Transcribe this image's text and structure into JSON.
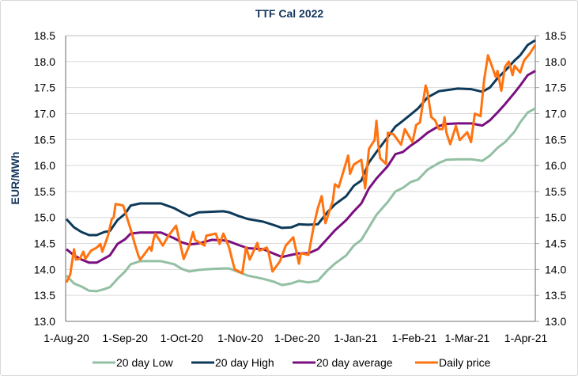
{
  "chart_data": {
    "type": "line",
    "title": "TTF Cal 2022",
    "ylabel": "EUR/MWh",
    "xlabel": "",
    "ylim": [
      13.0,
      18.5
    ],
    "xlim": [
      "2020-08-01",
      "2021-04-06"
    ],
    "y_ticks": [
      "13.0",
      "13.5",
      "14.0",
      "14.5",
      "15.0",
      "15.5",
      "16.0",
      "16.5",
      "17.0",
      "17.5",
      "18.0",
      "18.5"
    ],
    "secondary_y_ticks": [
      "13.0",
      "13.5",
      "14.0",
      "14.5",
      "15.0",
      "15.5",
      "16.0",
      "16.5",
      "17.0",
      "17.5",
      "18.0",
      "18.5"
    ],
    "x_ticks": [
      {
        "date": "2020-08-01",
        "label": "1-Aug-20"
      },
      {
        "date": "2020-09-01",
        "label": "1-Sep-20"
      },
      {
        "date": "2020-10-01",
        "label": "1-Oct-20"
      },
      {
        "date": "2020-11-01",
        "label": "1-Nov-20"
      },
      {
        "date": "2020-12-01",
        "label": "1-Dec-20"
      },
      {
        "date": "2021-01-01",
        "label": "1-Jan-21"
      },
      {
        "date": "2021-02-01",
        "label": "1-Feb-21"
      },
      {
        "date": "2021-03-01",
        "label": "1-Mar-21"
      },
      {
        "date": "2021-04-01",
        "label": "1-Apr-21"
      }
    ],
    "grid": "horizontal",
    "legend": "bottom",
    "x": [
      "2020-08-01",
      "2020-08-05",
      "2020-08-09",
      "2020-08-13",
      "2020-08-17",
      "2020-08-21",
      "2020-08-24",
      "2020-08-28",
      "2020-09-01",
      "2020-09-04",
      "2020-09-09",
      "2020-09-14",
      "2020-09-20",
      "2020-09-27",
      "2020-10-01",
      "2020-10-05",
      "2020-10-10",
      "2020-10-17",
      "2020-10-23",
      "2020-10-26",
      "2020-10-31",
      "2020-11-05",
      "2020-11-13",
      "2020-11-19",
      "2020-11-23",
      "2020-11-28",
      "2020-12-02",
      "2020-12-07",
      "2020-12-12",
      "2020-12-17",
      "2020-12-21",
      "2020-12-27",
      "2020-12-31",
      "2021-01-04",
      "2021-01-08",
      "2021-01-12",
      "2021-01-18",
      "2021-01-22",
      "2021-01-26",
      "2021-01-30",
      "2021-02-03",
      "2021-02-08",
      "2021-02-14",
      "2021-02-18",
      "2021-02-24",
      "2021-03-03",
      "2021-03-09",
      "2021-03-13",
      "2021-03-17",
      "2021-03-21",
      "2021-03-26",
      "2021-03-29",
      "2021-04-02",
      "2021-04-06"
    ],
    "series": [
      {
        "name": "20 day Low",
        "color": "#93bfa3",
        "values": [
          13.88,
          13.73,
          13.67,
          13.59,
          13.58,
          13.62,
          13.66,
          13.82,
          13.96,
          14.1,
          14.16,
          14.16,
          14.16,
          14.1,
          14.01,
          13.96,
          13.99,
          14.01,
          14.02,
          14.02,
          13.95,
          13.88,
          13.82,
          13.76,
          13.7,
          13.73,
          13.78,
          13.75,
          13.78,
          13.98,
          14.11,
          14.27,
          14.46,
          14.57,
          14.81,
          15.05,
          15.3,
          15.5,
          15.57,
          15.68,
          15.73,
          15.92,
          16.05,
          16.11,
          16.12,
          16.12,
          16.09,
          16.19,
          16.34,
          16.45,
          16.65,
          16.83,
          17.02,
          17.1
        ]
      },
      {
        "name": "20 day High",
        "color": "#0e3a5a",
        "values": [
          14.97,
          14.81,
          14.72,
          14.66,
          14.66,
          14.72,
          14.74,
          14.95,
          15.07,
          15.23,
          15.27,
          15.27,
          15.27,
          15.18,
          15.1,
          15.03,
          15.1,
          15.11,
          15.12,
          15.1,
          15.03,
          14.97,
          14.92,
          14.85,
          14.8,
          14.81,
          14.87,
          14.86,
          14.87,
          15.1,
          15.25,
          15.41,
          15.61,
          15.71,
          16.06,
          16.26,
          16.55,
          16.75,
          16.86,
          16.98,
          17.1,
          17.31,
          17.43,
          17.45,
          17.48,
          17.47,
          17.42,
          17.5,
          17.68,
          17.82,
          18.02,
          18.12,
          18.32,
          18.41
        ]
      },
      {
        "name": "20 day average",
        "color": "#7a0f80",
        "values": [
          14.39,
          14.27,
          14.19,
          14.13,
          14.13,
          14.21,
          14.27,
          14.49,
          14.58,
          14.69,
          14.71,
          14.71,
          14.71,
          14.6,
          14.52,
          14.48,
          14.5,
          14.57,
          14.56,
          14.54,
          14.47,
          14.41,
          14.39,
          14.3,
          14.24,
          14.28,
          14.31,
          14.31,
          14.39,
          14.59,
          14.75,
          14.95,
          15.12,
          15.27,
          15.56,
          15.75,
          15.99,
          16.22,
          16.26,
          16.38,
          16.48,
          16.63,
          16.76,
          16.8,
          16.81,
          16.81,
          16.77,
          16.87,
          17.02,
          17.18,
          17.4,
          17.54,
          17.74,
          17.82
        ]
      },
      {
        "name": "Daily price",
        "color": "#ff7310",
        "x": [
          "2020-08-01",
          "2020-08-03",
          "2020-08-05",
          "2020-08-06",
          "2020-08-08",
          "2020-08-10",
          "2020-08-11",
          "2020-08-14",
          "2020-08-17",
          "2020-08-19",
          "2020-08-20",
          "2020-08-23",
          "2020-08-25",
          "2020-08-26",
          "2020-08-27",
          "2020-08-31",
          "2020-09-01",
          "2020-09-04",
          "2020-09-06",
          "2020-09-08",
          "2020-09-09",
          "2020-09-11",
          "2020-09-14",
          "2020-09-15",
          "2020-09-16",
          "2020-09-17",
          "2020-09-21",
          "2020-09-24",
          "2020-09-28",
          "2020-10-02",
          "2020-10-05",
          "2020-10-07",
          "2020-10-08",
          "2020-10-13",
          "2020-10-14",
          "2020-10-19",
          "2020-10-21",
          "2020-10-23",
          "2020-10-26",
          "2020-10-29",
          "2020-11-02",
          "2020-11-04",
          "2020-11-06",
          "2020-11-10",
          "2020-11-11",
          "2020-11-15",
          "2020-11-16",
          "2020-11-18",
          "2020-11-22",
          "2020-11-25",
          "2020-11-29",
          "2020-12-02",
          "2020-12-03",
          "2020-12-07",
          "2020-12-10",
          "2020-12-12",
          "2020-12-14",
          "2020-12-16",
          "2020-12-20",
          "2020-12-21",
          "2020-12-23",
          "2020-12-28",
          "2020-12-29",
          "2020-12-31",
          "2021-01-04",
          "2021-01-06",
          "2021-01-08",
          "2021-01-11",
          "2021-01-12",
          "2021-01-13",
          "2021-01-14",
          "2021-01-17",
          "2021-01-18",
          "2021-01-21",
          "2021-01-25",
          "2021-01-27",
          "2021-01-31",
          "2021-02-02",
          "2021-02-04",
          "2021-02-07",
          "2021-02-08",
          "2021-02-10",
          "2021-02-12",
          "2021-02-14",
          "2021-02-16",
          "2021-02-17",
          "2021-02-18",
          "2021-02-20",
          "2021-02-23",
          "2021-02-25",
          "2021-03-01",
          "2021-03-03",
          "2021-03-05",
          "2021-03-08",
          "2021-03-10",
          "2021-03-12",
          "2021-03-14",
          "2021-03-16",
          "2021-03-17",
          "2021-03-19",
          "2021-03-21",
          "2021-03-23",
          "2021-03-25",
          "2021-03-26",
          "2021-03-29",
          "2021-03-31",
          "2021-04-03",
          "2021-04-06"
        ],
        "values": [
          13.75,
          13.9,
          14.39,
          14.19,
          14.2,
          14.34,
          14.2,
          14.36,
          14.42,
          14.49,
          14.34,
          14.65,
          14.97,
          15.0,
          15.26,
          15.23,
          15.12,
          14.77,
          14.51,
          14.27,
          14.19,
          14.28,
          14.43,
          14.36,
          14.57,
          14.69,
          14.46,
          14.65,
          14.84,
          14.2,
          14.46,
          14.72,
          14.57,
          14.46,
          14.65,
          14.69,
          14.49,
          14.69,
          14.43,
          14.0,
          13.93,
          14.43,
          14.19,
          14.51,
          14.36,
          14.42,
          14.31,
          13.96,
          14.16,
          14.46,
          14.62,
          14.11,
          14.31,
          14.28,
          14.87,
          15.18,
          15.41,
          14.89,
          15.33,
          15.64,
          15.58,
          16.19,
          15.84,
          16.02,
          16.11,
          15.56,
          16.32,
          16.49,
          16.86,
          16.4,
          16.14,
          16.03,
          16.63,
          16.6,
          16.4,
          16.7,
          16.45,
          16.78,
          16.83,
          17.54,
          17.41,
          16.93,
          16.87,
          16.7,
          16.7,
          16.93,
          16.63,
          16.41,
          16.76,
          16.49,
          16.64,
          16.45,
          17.0,
          16.95,
          17.66,
          18.12,
          17.92,
          17.71,
          17.82,
          17.44,
          17.9,
          18.0,
          17.74,
          17.92,
          17.79,
          18.02,
          18.15,
          18.32
        ]
      }
    ]
  }
}
